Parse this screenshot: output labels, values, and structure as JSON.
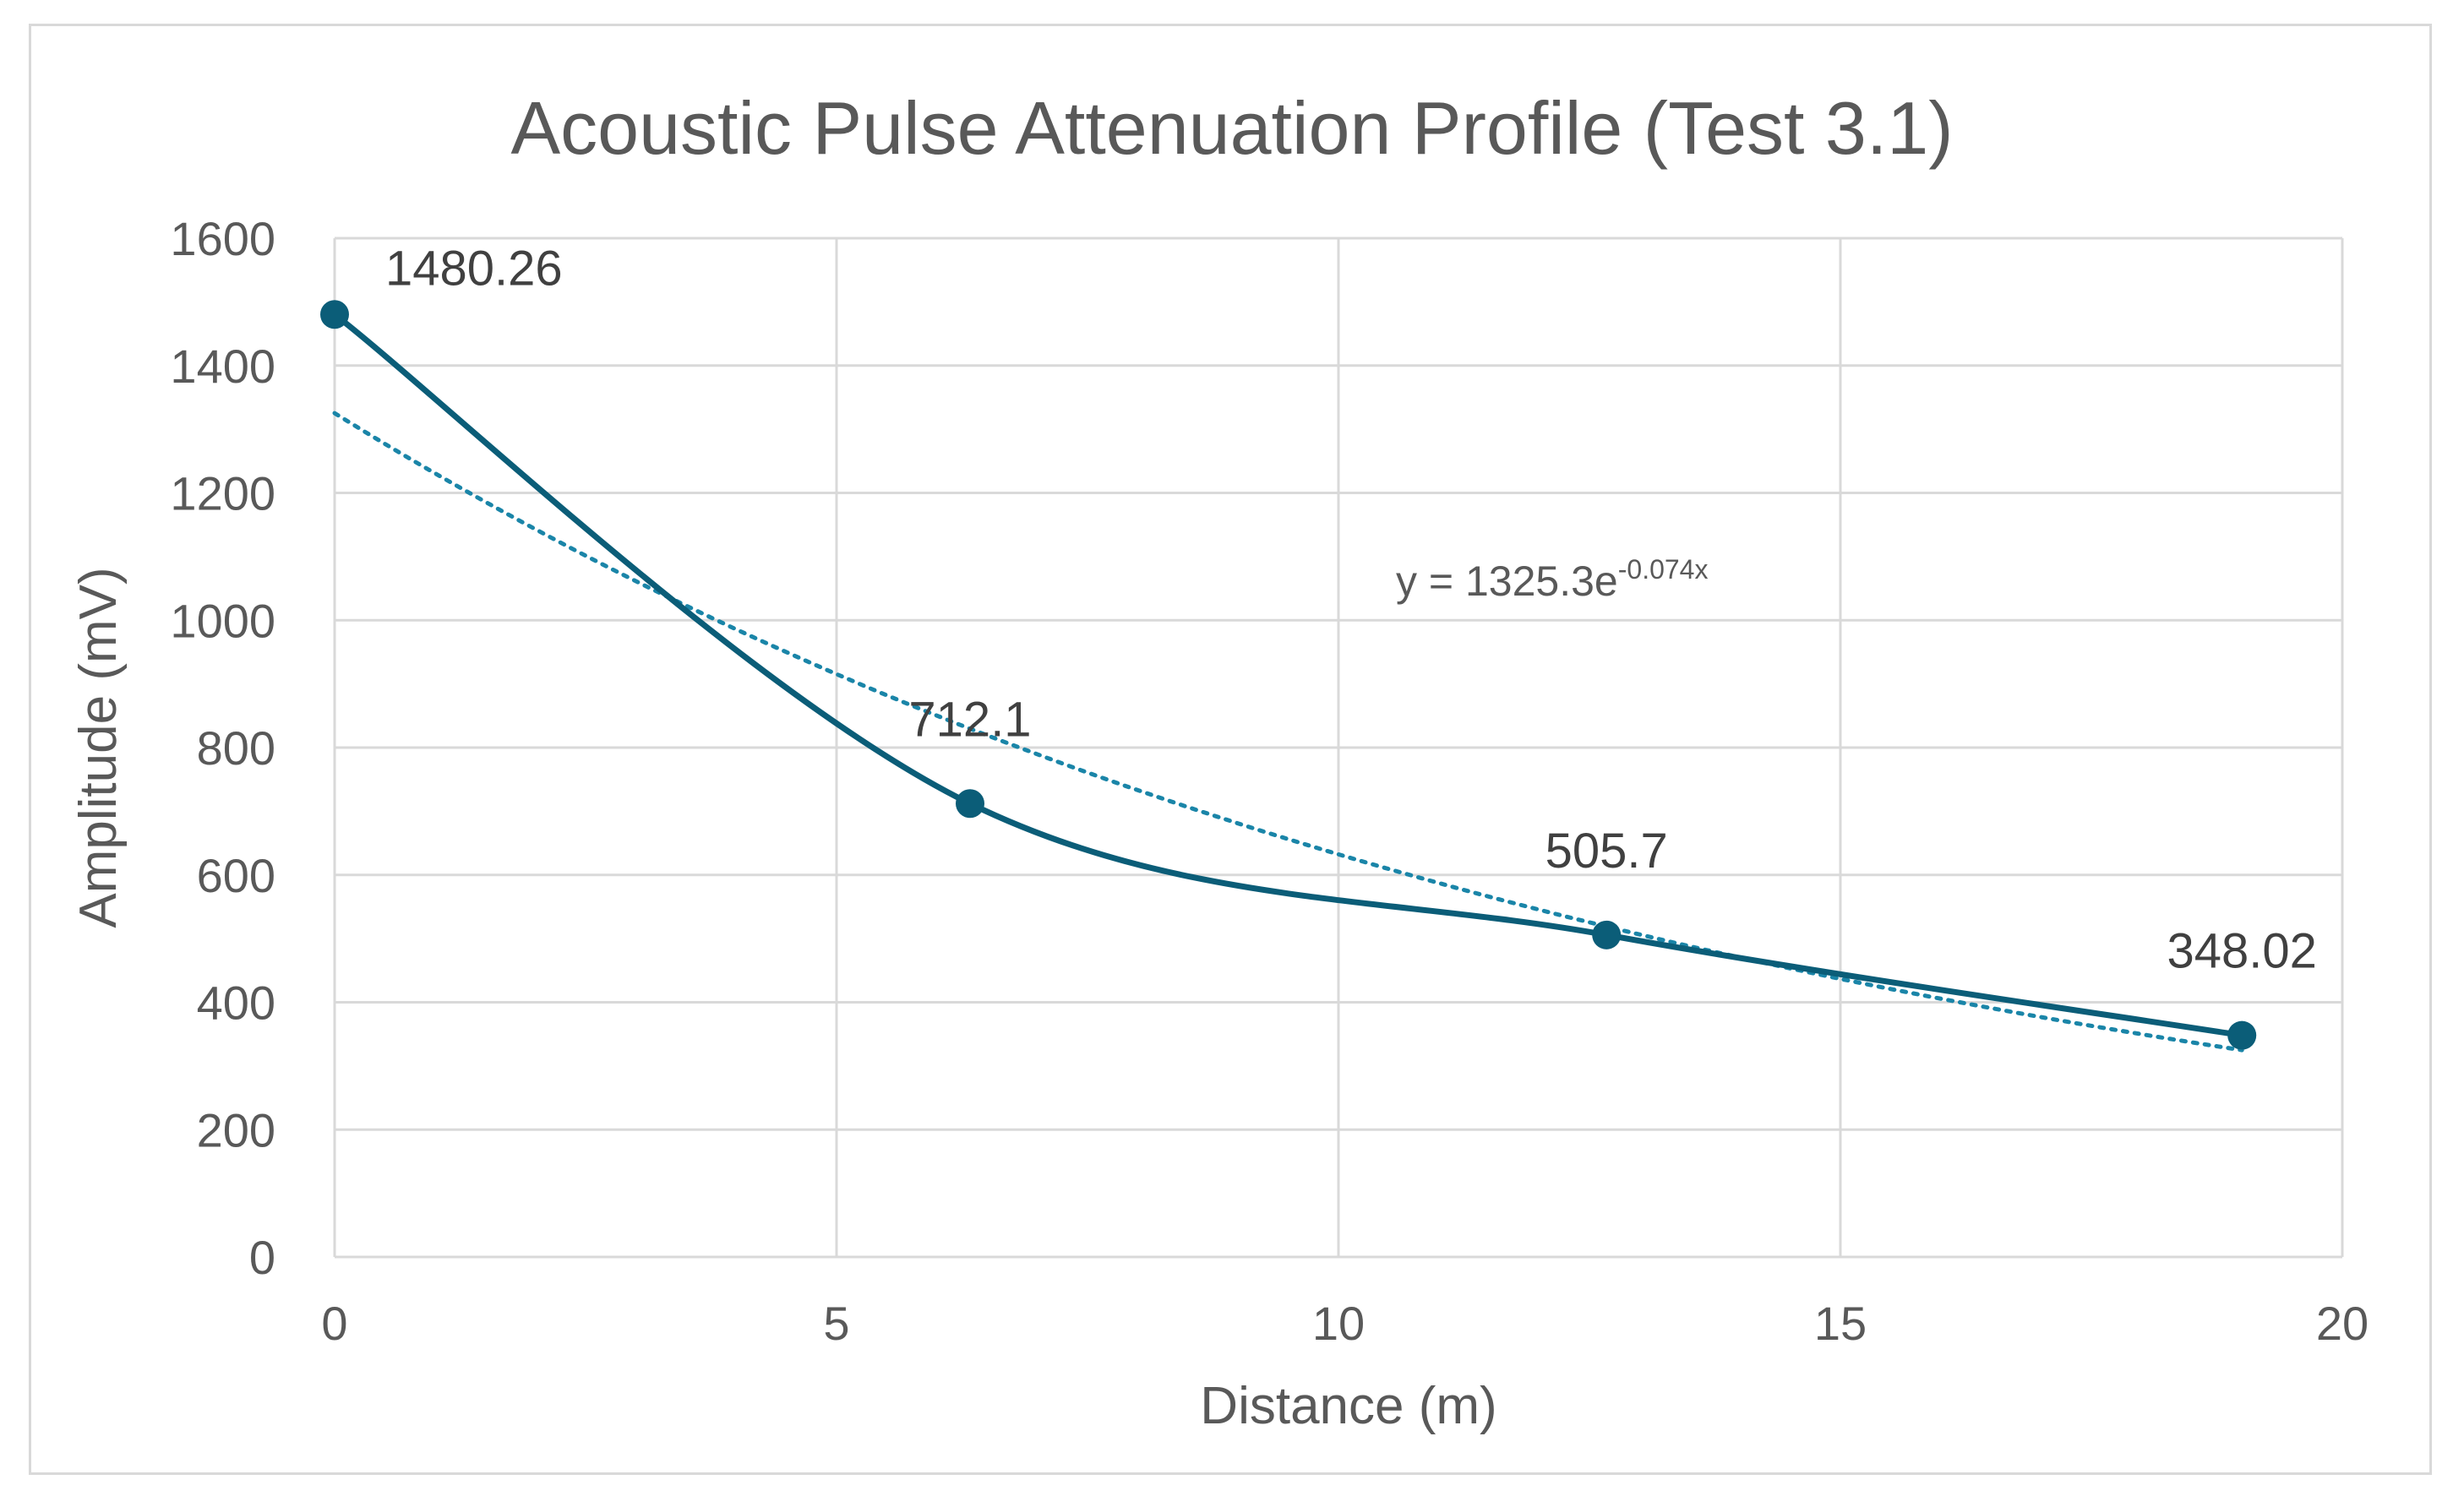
{
  "chart_data": {
    "type": "scatter",
    "title": "Acoustic Pulse Attenuation Profile (Test 3.1)",
    "xlabel": "Distance (m)",
    "ylabel": "Amplitude (mV)",
    "xlim": [
      0,
      20
    ],
    "ylim": [
      0,
      1600
    ],
    "xticks": [
      0,
      5,
      10,
      15,
      20
    ],
    "yticks": [
      0,
      200,
      400,
      600,
      800,
      1000,
      1200,
      1400,
      1600
    ],
    "grid": true,
    "series": [
      {
        "name": "Amplitude",
        "style": "smooth-line-with-markers",
        "color": "#0b5d78",
        "x": [
          0,
          6.33,
          12.67,
          19.0
        ],
        "y": [
          1480.26,
          712.1,
          505.7,
          348.02
        ],
        "labels": [
          "1480.26",
          "712.1",
          "505.7",
          "348.02"
        ]
      }
    ],
    "trendline": {
      "type": "exponential",
      "a": 1325.3,
      "b": -0.074,
      "equation_prefix": "y = 1325.3e",
      "equation_exponent": "-0.074x",
      "color": "#1a85a8"
    },
    "colors": {
      "grid": "#d9d9d9",
      "axis_text": "#595959",
      "frame": "#d9d9d9"
    }
  }
}
